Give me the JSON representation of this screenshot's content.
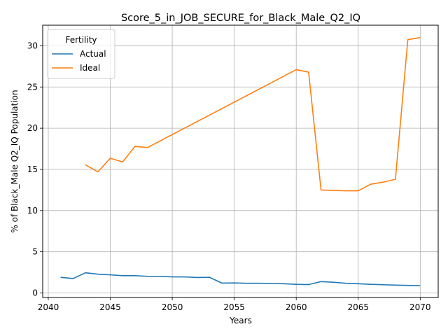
{
  "chart_data": {
    "type": "line",
    "title": "Score_5_in_JOB_SECURE_for_Black_Male_Q2_IQ",
    "xlabel": "Years",
    "ylabel": "% of Black_Male Q2_IQ Population",
    "xlim": [
      2039.55,
      2071.45
    ],
    "ylim": [
      -0.55,
      32.5
    ],
    "xticks": [
      2040,
      2045,
      2050,
      2055,
      2060,
      2065,
      2070
    ],
    "yticks": [
      0,
      5,
      10,
      15,
      20,
      25,
      30
    ],
    "grid": true,
    "legend": {
      "title": "Fertility",
      "placement": "top-left"
    },
    "series": [
      {
        "name": "Actual",
        "color": "#1f77b4",
        "x": [
          2041,
          2042,
          2043,
          2044,
          2045,
          2046,
          2047,
          2048,
          2049,
          2050,
          2051,
          2052,
          2053,
          2054,
          2055,
          2056,
          2057,
          2058,
          2059,
          2060,
          2061,
          2062,
          2063,
          2064,
          2065,
          2066,
          2067,
          2068,
          2069,
          2070
        ],
        "y": [
          1.9,
          1.75,
          2.45,
          2.28,
          2.2,
          2.1,
          2.1,
          2.02,
          2.02,
          1.95,
          1.95,
          1.88,
          1.9,
          1.2,
          1.22,
          1.18,
          1.18,
          1.15,
          1.12,
          1.05,
          1.02,
          1.38,
          1.3,
          1.18,
          1.12,
          1.05,
          1.0,
          0.95,
          0.92,
          0.88
        ]
      },
      {
        "name": "Ideal",
        "color": "#ff7f0e",
        "x": [
          2043,
          2044,
          2045,
          2046,
          2047,
          2048,
          2060,
          2061,
          2062,
          2064,
          2065,
          2066,
          2067,
          2068,
          2069,
          2070
        ],
        "y": [
          15.55,
          14.7,
          16.35,
          15.9,
          17.8,
          17.65,
          27.1,
          26.8,
          12.5,
          12.4,
          12.4,
          13.2,
          13.45,
          13.8,
          30.75,
          31.0
        ]
      }
    ]
  }
}
